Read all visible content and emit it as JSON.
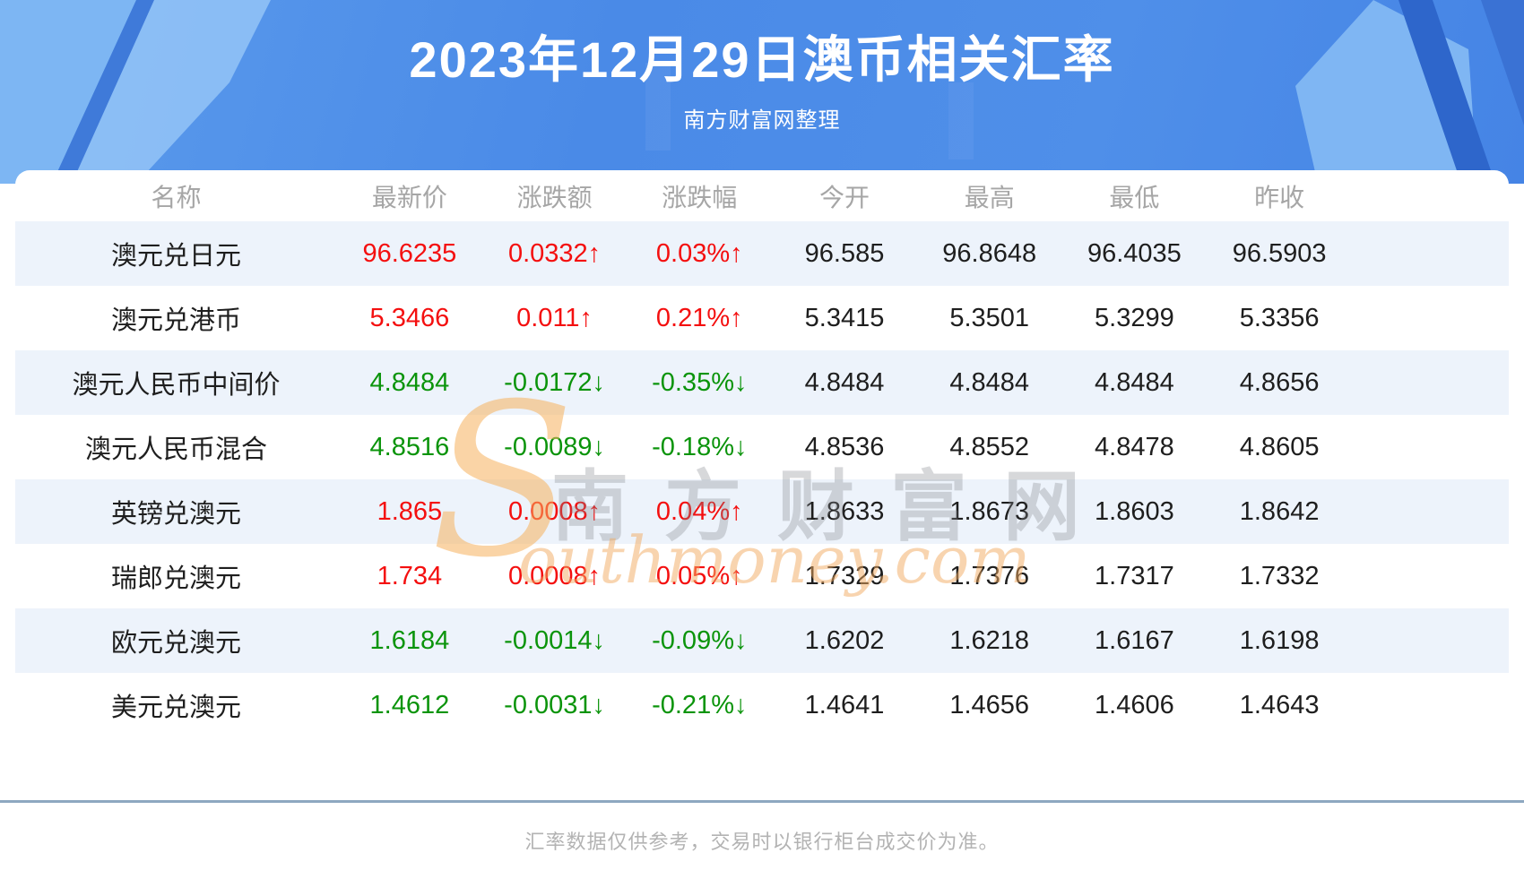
{
  "header": {
    "title": "2023年12月29日澳币相关汇率",
    "subtitle": "南方财富网整理"
  },
  "table": {
    "columns": [
      "名称",
      "最新价",
      "涨跌额",
      "涨跌幅",
      "今开",
      "最高",
      "最低",
      "昨收"
    ],
    "rows": [
      {
        "name": "澳元兑日元",
        "latest": "96.6235",
        "change": "0.0332↑",
        "change_pct": "0.03%↑",
        "trend": "up",
        "open": "96.585",
        "high": "96.8648",
        "low": "96.4035",
        "prev_close": "96.5903"
      },
      {
        "name": "澳元兑港币",
        "latest": "5.3466",
        "change": "0.011↑",
        "change_pct": "0.21%↑",
        "trend": "up",
        "open": "5.3415",
        "high": "5.3501",
        "low": "5.3299",
        "prev_close": "5.3356"
      },
      {
        "name": "澳元人民币中间价",
        "latest": "4.8484",
        "change": "-0.0172↓",
        "change_pct": "-0.35%↓",
        "trend": "down",
        "open": "4.8484",
        "high": "4.8484",
        "low": "4.8484",
        "prev_close": "4.8656"
      },
      {
        "name": "澳元人民币混合",
        "latest": "4.8516",
        "change": "-0.0089↓",
        "change_pct": "-0.18%↓",
        "trend": "down",
        "open": "4.8536",
        "high": "4.8552",
        "low": "4.8478",
        "prev_close": "4.8605"
      },
      {
        "name": "英镑兑澳元",
        "latest": "1.865",
        "change": "0.0008↑",
        "change_pct": "0.04%↑",
        "trend": "up",
        "open": "1.8633",
        "high": "1.8673",
        "low": "1.8603",
        "prev_close": "1.8642"
      },
      {
        "name": "瑞郎兑澳元",
        "latest": "1.734",
        "change": "0.0008↑",
        "change_pct": "0.05%↑",
        "trend": "up",
        "open": "1.7329",
        "high": "1.7376",
        "low": "1.7317",
        "prev_close": "1.7332"
      },
      {
        "name": "欧元兑澳元",
        "latest": "1.6184",
        "change": "-0.0014↓",
        "change_pct": "-0.09%↓",
        "trend": "down",
        "open": "1.6202",
        "high": "1.6218",
        "low": "1.6167",
        "prev_close": "1.6198"
      },
      {
        "name": "美元兑澳元",
        "latest": "1.4612",
        "change": "-0.0031↓",
        "change_pct": "-0.21%↓",
        "trend": "down",
        "open": "1.4641",
        "high": "1.4656",
        "low": "1.4606",
        "prev_close": "1.4643"
      }
    ]
  },
  "watermark": {
    "s": "S",
    "cn": "南方财富网",
    "en": "outhmoney.com"
  },
  "footer": {
    "disclaimer": "汇率数据仅供参考，交易时以银行柜台成交价为准。"
  },
  "colors": {
    "up": "#f40f0f",
    "down": "#0b940b",
    "stripe": "#edf3fb",
    "banner_blue": "#4a8ae7"
  }
}
